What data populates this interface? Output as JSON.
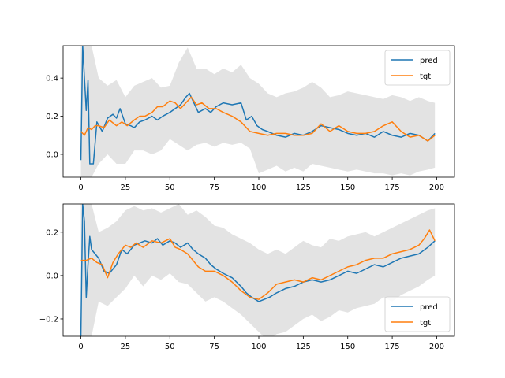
{
  "chart_data": [
    {
      "type": "line",
      "xlim": [
        -10,
        210
      ],
      "ylim": [
        -0.12,
        0.57
      ],
      "x_ticks": [
        0,
        25,
        50,
        75,
        100,
        125,
        150,
        175,
        200
      ],
      "y_ticks": [
        0.0,
        0.2,
        0.4
      ],
      "y_tick_labels": [
        "0.0",
        "0.2",
        "0.4"
      ],
      "legend_position": "top-right",
      "grid": false,
      "band": {
        "color": "#d9d9d9",
        "x": [
          0,
          3,
          6,
          10,
          15,
          20,
          25,
          30,
          35,
          40,
          45,
          50,
          55,
          60,
          65,
          70,
          75,
          80,
          85,
          90,
          95,
          100,
          105,
          110,
          115,
          120,
          125,
          130,
          135,
          140,
          145,
          150,
          155,
          160,
          165,
          170,
          175,
          180,
          185,
          190,
          195,
          199
        ],
        "upper": [
          0.57,
          0.57,
          0.57,
          0.4,
          0.36,
          0.39,
          0.3,
          0.36,
          0.38,
          0.4,
          0.35,
          0.36,
          0.48,
          0.56,
          0.45,
          0.45,
          0.42,
          0.45,
          0.43,
          0.47,
          0.4,
          0.37,
          0.32,
          0.3,
          0.32,
          0.33,
          0.35,
          0.38,
          0.35,
          0.3,
          0.31,
          0.33,
          0.32,
          0.31,
          0.3,
          0.29,
          0.31,
          0.3,
          0.28,
          0.3,
          0.28,
          0.27
        ],
        "lower": [
          -0.12,
          -0.12,
          -0.12,
          -0.05,
          0.0,
          -0.05,
          -0.05,
          0.02,
          0.02,
          0.0,
          0.02,
          0.08,
          0.05,
          0.02,
          0.05,
          0.06,
          0.04,
          0.06,
          0.05,
          0.06,
          0.03,
          -0.1,
          -0.08,
          -0.06,
          -0.09,
          -0.07,
          -0.09,
          -0.05,
          -0.06,
          -0.07,
          -0.08,
          -0.09,
          -0.08,
          -0.09,
          -0.1,
          -0.1,
          -0.11,
          -0.1,
          -0.11,
          -0.09,
          -0.08,
          -0.07
        ]
      },
      "series": [
        {
          "name": "pred",
          "color": "#1f77b4",
          "x": [
            0,
            1,
            2,
            3,
            4,
            5,
            7,
            9,
            12,
            15,
            18,
            20,
            22,
            25,
            28,
            30,
            33,
            36,
            40,
            43,
            46,
            50,
            53,
            56,
            59,
            61,
            63,
            66,
            70,
            73,
            76,
            80,
            85,
            90,
            93,
            96,
            99,
            102,
            105,
            110,
            115,
            120,
            125,
            130,
            135,
            140,
            145,
            150,
            155,
            160,
            165,
            170,
            175,
            180,
            185,
            190,
            195,
            199
          ],
          "y": [
            -0.03,
            0.57,
            0.4,
            0.23,
            0.39,
            -0.05,
            -0.05,
            0.17,
            0.12,
            0.19,
            0.21,
            0.19,
            0.24,
            0.16,
            0.15,
            0.14,
            0.17,
            0.18,
            0.2,
            0.18,
            0.2,
            0.22,
            0.24,
            0.26,
            0.3,
            0.32,
            0.28,
            0.22,
            0.24,
            0.22,
            0.25,
            0.27,
            0.26,
            0.27,
            0.18,
            0.2,
            0.15,
            0.13,
            0.12,
            0.1,
            0.09,
            0.11,
            0.1,
            0.12,
            0.15,
            0.14,
            0.13,
            0.11,
            0.1,
            0.11,
            0.09,
            0.12,
            0.1,
            0.09,
            0.11,
            0.1,
            0.07,
            0.11
          ]
        },
        {
          "name": "tgt",
          "color": "#ff7f0e",
          "x": [
            0,
            2,
            4,
            6,
            8,
            10,
            13,
            16,
            20,
            23,
            26,
            30,
            33,
            36,
            40,
            43,
            46,
            50,
            53,
            56,
            59,
            62,
            65,
            68,
            72,
            76,
            80,
            85,
            90,
            95,
            100,
            105,
            110,
            115,
            120,
            125,
            130,
            135,
            140,
            145,
            150,
            155,
            160,
            165,
            170,
            175,
            180,
            185,
            190,
            195,
            199
          ],
          "y": [
            0.12,
            0.1,
            0.14,
            0.13,
            0.15,
            0.15,
            0.14,
            0.18,
            0.15,
            0.17,
            0.15,
            0.18,
            0.2,
            0.2,
            0.22,
            0.25,
            0.25,
            0.28,
            0.27,
            0.24,
            0.27,
            0.3,
            0.26,
            0.27,
            0.24,
            0.24,
            0.22,
            0.2,
            0.17,
            0.12,
            0.11,
            0.1,
            0.11,
            0.11,
            0.1,
            0.1,
            0.11,
            0.16,
            0.12,
            0.15,
            0.12,
            0.11,
            0.11,
            0.12,
            0.15,
            0.17,
            0.12,
            0.09,
            0.1,
            0.07,
            0.1
          ]
        }
      ]
    },
    {
      "type": "line",
      "xlim": [
        -10,
        210
      ],
      "ylim": [
        -0.28,
        0.33
      ],
      "x_ticks": [
        0,
        25,
        50,
        75,
        100,
        125,
        150,
        175,
        200
      ],
      "y_ticks": [
        -0.2,
        0.0,
        0.2
      ],
      "y_tick_labels": [
        "−0.2",
        "0.0",
        "0.2"
      ],
      "legend_position": "bottom-right",
      "grid": false,
      "band": {
        "color": "#d9d9d9",
        "x": [
          0,
          3,
          6,
          10,
          15,
          20,
          25,
          30,
          35,
          40,
          45,
          50,
          55,
          60,
          65,
          70,
          75,
          80,
          85,
          90,
          95,
          100,
          105,
          110,
          115,
          120,
          125,
          130,
          135,
          140,
          145,
          150,
          155,
          160,
          165,
          170,
          175,
          180,
          185,
          190,
          195,
          199
        ],
        "upper": [
          0.33,
          0.33,
          0.33,
          0.2,
          0.22,
          0.25,
          0.3,
          0.32,
          0.3,
          0.31,
          0.29,
          0.31,
          0.33,
          0.28,
          0.3,
          0.27,
          0.23,
          0.22,
          0.19,
          0.17,
          0.15,
          0.12,
          0.1,
          0.12,
          0.1,
          0.13,
          0.16,
          0.14,
          0.13,
          0.17,
          0.16,
          0.18,
          0.19,
          0.2,
          0.18,
          0.2,
          0.22,
          0.24,
          0.26,
          0.28,
          0.3,
          0.31
        ],
        "lower": [
          -0.28,
          -0.28,
          -0.28,
          -0.12,
          -0.14,
          -0.1,
          -0.06,
          0.0,
          -0.05,
          0.0,
          -0.02,
          0.01,
          -0.03,
          -0.04,
          -0.08,
          -0.12,
          -0.1,
          -0.12,
          -0.15,
          -0.18,
          -0.22,
          -0.26,
          -0.3,
          -0.27,
          -0.26,
          -0.23,
          -0.2,
          -0.18,
          -0.21,
          -0.19,
          -0.16,
          -0.17,
          -0.15,
          -0.14,
          -0.13,
          -0.1,
          -0.12,
          -0.09,
          -0.07,
          -0.05,
          -0.02,
          0.0
        ]
      },
      "series": [
        {
          "name": "pred",
          "color": "#1f77b4",
          "x": [
            0,
            1,
            2,
            3,
            4,
            5,
            6,
            8,
            10,
            13,
            16,
            20,
            23,
            26,
            30,
            33,
            36,
            40,
            43,
            46,
            50,
            53,
            56,
            60,
            63,
            66,
            70,
            73,
            76,
            80,
            85,
            90,
            93,
            96,
            100,
            103,
            106,
            110,
            115,
            120,
            125,
            130,
            135,
            140,
            145,
            150,
            155,
            160,
            165,
            170,
            175,
            180,
            185,
            190,
            195,
            199
          ],
          "y": [
            -0.28,
            0.33,
            0.25,
            -0.1,
            0.05,
            0.18,
            0.12,
            0.1,
            0.08,
            0.02,
            0.01,
            0.05,
            0.12,
            0.1,
            0.14,
            0.15,
            0.16,
            0.15,
            0.17,
            0.14,
            0.16,
            0.15,
            0.13,
            0.15,
            0.12,
            0.1,
            0.08,
            0.05,
            0.03,
            0.01,
            -0.01,
            -0.05,
            -0.08,
            -0.1,
            -0.12,
            -0.11,
            -0.1,
            -0.08,
            -0.06,
            -0.05,
            -0.03,
            -0.02,
            -0.03,
            -0.02,
            0.0,
            0.02,
            0.01,
            0.03,
            0.05,
            0.04,
            0.06,
            0.08,
            0.09,
            0.1,
            0.13,
            0.16
          ]
        },
        {
          "name": "tgt",
          "color": "#ff7f0e",
          "x": [
            0,
            3,
            6,
            9,
            12,
            15,
            18,
            21,
            25,
            28,
            31,
            35,
            40,
            45,
            50,
            53,
            56,
            60,
            63,
            66,
            70,
            75,
            80,
            85,
            90,
            95,
            100,
            105,
            110,
            115,
            120,
            125,
            130,
            135,
            140,
            145,
            150,
            155,
            160,
            165,
            170,
            175,
            180,
            185,
            190,
            193,
            196,
            199
          ],
          "y": [
            0.07,
            0.07,
            0.08,
            0.06,
            0.05,
            -0.01,
            0.06,
            0.1,
            0.14,
            0.13,
            0.15,
            0.13,
            0.16,
            0.15,
            0.17,
            0.13,
            0.12,
            0.1,
            0.07,
            0.04,
            0.02,
            0.02,
            0.0,
            -0.03,
            -0.07,
            -0.1,
            -0.11,
            -0.08,
            -0.04,
            -0.03,
            -0.02,
            -0.03,
            -0.01,
            -0.02,
            0.0,
            0.02,
            0.04,
            0.05,
            0.07,
            0.08,
            0.08,
            0.1,
            0.11,
            0.12,
            0.14,
            0.17,
            0.21,
            0.16
          ]
        }
      ]
    }
  ]
}
